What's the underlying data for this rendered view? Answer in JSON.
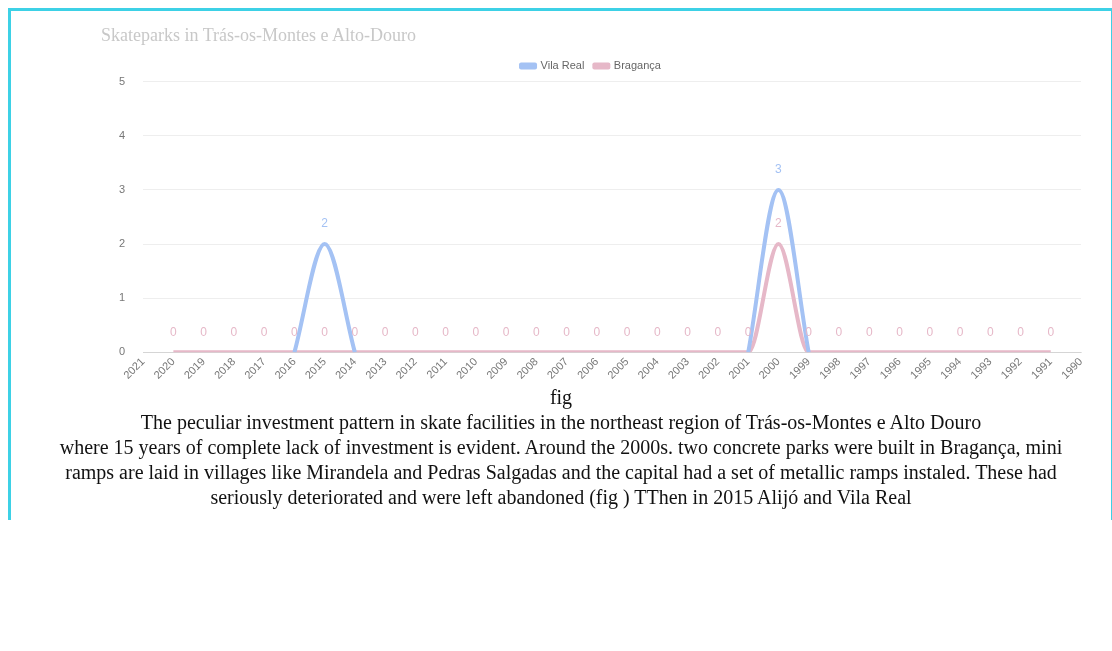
{
  "chart_data": {
    "type": "line",
    "title": "Skateparks in Trás-os-Montes e Alto-Douro",
    "categories": [
      "2021",
      "2020",
      "2019",
      "2018",
      "2017",
      "2016",
      "2015",
      "2014",
      "2013",
      "2012",
      "2011",
      "2010",
      "2009",
      "2008",
      "2007",
      "2006",
      "2005",
      "2004",
      "2003",
      "2002",
      "2001",
      "2000",
      "1999",
      "1998",
      "1997",
      "1996",
      "1995",
      "1994",
      "1993",
      "1992",
      "1991",
      "1990"
    ],
    "series": [
      {
        "name": "Vila Real",
        "color": "#a4c2f4",
        "values": [
          null,
          null,
          null,
          null,
          null,
          0,
          2,
          0,
          null,
          null,
          null,
          null,
          null,
          null,
          null,
          null,
          null,
          null,
          null,
          null,
          0,
          3,
          0,
          null,
          null,
          null,
          null,
          null,
          null,
          null,
          null,
          null
        ],
        "value_labels": [
          null,
          null,
          null,
          null,
          null,
          null,
          "2",
          null,
          null,
          null,
          null,
          null,
          null,
          null,
          null,
          null,
          null,
          null,
          null,
          null,
          null,
          "3",
          null,
          null,
          null,
          null,
          null,
          null,
          null,
          null,
          null,
          null
        ]
      },
      {
        "name": "Bragança",
        "color": "#e6b8c8",
        "values": [
          null,
          0,
          0,
          0,
          0,
          0,
          0,
          0,
          0,
          0,
          0,
          0,
          0,
          0,
          0,
          0,
          0,
          0,
          0,
          0,
          0,
          2,
          0,
          0,
          0,
          0,
          0,
          0,
          0,
          0,
          0,
          null
        ],
        "value_labels": [
          null,
          "0",
          "0",
          "0",
          "0",
          "0",
          "0",
          "0",
          "0",
          "0",
          "0",
          "0",
          "0",
          "0",
          "0",
          "0",
          "0",
          "0",
          "0",
          "0",
          "0",
          "2",
          "0",
          "0",
          "0",
          "0",
          "0",
          "0",
          "0",
          "0",
          "0",
          null
        ]
      }
    ],
    "ylim": [
      0,
      5
    ],
    "yticks": [
      0,
      1,
      2,
      3,
      4,
      5
    ],
    "grid": "y",
    "legend": "top",
    "marker": "none",
    "annotations": [
      "fig",
      "The peculiar investment pattern in skate facilities in the northeast region of Trás-os-Montes e Alto Douro",
      "where 15 years of complete lack of investment is evident. Around the 2000s. two concrete parks were built in Bragança, mini ramps are laid in villages like Mirandela and Pedras Salgadas and the capital had a set of metallic ramps instaled. These had seriously deteriorated and were left abandoned (fig ) TThen in 2015 Alijó and Vila Real"
    ]
  }
}
